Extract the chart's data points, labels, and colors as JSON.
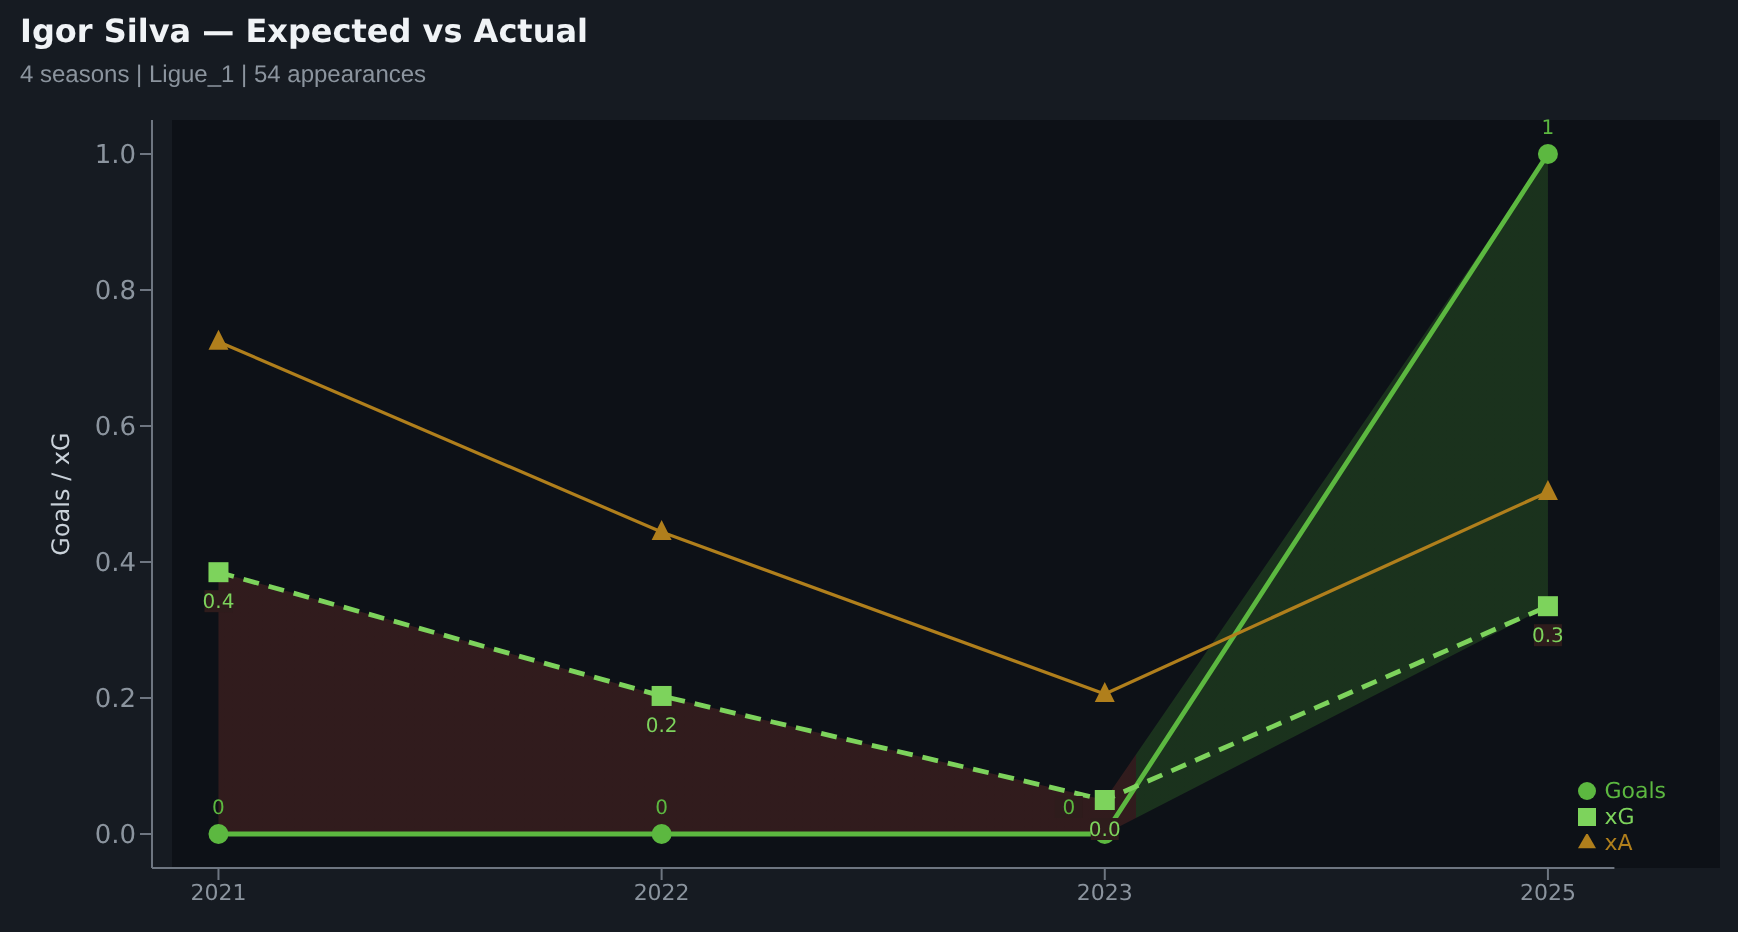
{
  "chart_data": {
    "type": "line",
    "title": "Igor Silva — Expected vs Actual",
    "subtitle": "4 seasons | Ligue_1 | 54 appearances",
    "ylabel": "Goals / xG",
    "categories": [
      "2021",
      "2022",
      "2023",
      "2025"
    ],
    "series": [
      {
        "name": "Goals",
        "color": "#5cb840",
        "values": [
          0,
          0,
          0,
          1
        ],
        "value_labels": [
          "0",
          "0",
          "0",
          "1"
        ],
        "marker": "circle",
        "line_style": "solid",
        "lower": [
          0,
          0,
          0,
          0.335
        ],
        "upper": [
          0.385,
          0.203,
          0.05,
          1
        ]
      },
      {
        "name": "xG",
        "color": "#7dd35c",
        "values": [
          0.385,
          0.203,
          0.05,
          0.335
        ],
        "value_labels": [
          "0.4",
          "0.2",
          "0.0",
          "0.3"
        ],
        "marker": "square",
        "line_style": "dashed"
      },
      {
        "name": "xA",
        "color": "#b07f1c",
        "values": [
          0.724,
          0.444,
          0.206,
          0.503
        ],
        "marker": "triangle",
        "line_style": "solid"
      }
    ],
    "ylim": [
      -0.05,
      1.05
    ],
    "yticks": [
      {
        "value": 0,
        "label": "0.0"
      },
      {
        "value": 0.2,
        "label": "0.2"
      },
      {
        "value": 0.4,
        "label": "0.4"
      },
      {
        "value": 0.6,
        "label": "0.6"
      },
      {
        "value": 0.8,
        "label": "0.8"
      },
      {
        "value": 1,
        "label": "1.0"
      }
    ],
    "grid": false,
    "legend": "bottom right"
  }
}
